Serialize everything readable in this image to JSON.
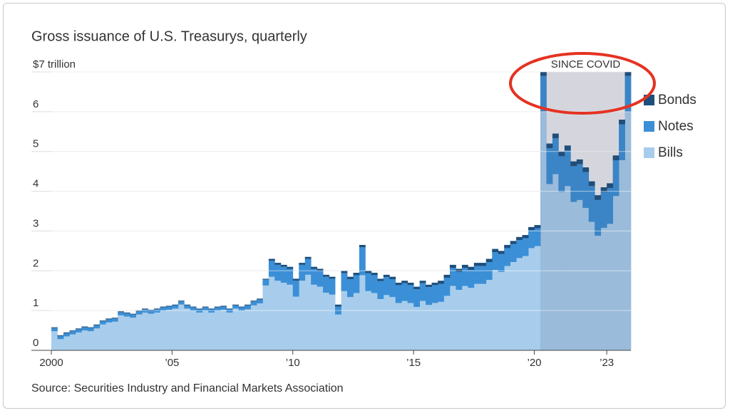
{
  "chart_data": {
    "type": "stacked-step-area",
    "title": "Gross issuance of U.S. Treasurys, quarterly",
    "source": "Source: Securities Industry and Financial Markets Association",
    "x": [
      2000,
      2000.25,
      2000.5,
      2000.75,
      2001,
      2001.25,
      2001.5,
      2001.75,
      2002,
      2002.25,
      2002.5,
      2002.75,
      2003,
      2003.25,
      2003.5,
      2003.75,
      2004,
      2004.25,
      2004.5,
      2004.75,
      2005,
      2005.25,
      2005.5,
      2005.75,
      2006,
      2006.25,
      2006.5,
      2006.75,
      2007,
      2007.25,
      2007.5,
      2007.75,
      2008,
      2008.25,
      2008.5,
      2008.75,
      2009,
      2009.25,
      2009.5,
      2009.75,
      2010,
      2010.25,
      2010.5,
      2010.75,
      2011,
      2011.25,
      2011.5,
      2011.75,
      2012,
      2012.25,
      2012.5,
      2012.75,
      2013,
      2013.25,
      2013.5,
      2013.75,
      2014,
      2014.25,
      2014.5,
      2014.75,
      2015,
      2015.25,
      2015.5,
      2015.75,
      2016,
      2016.25,
      2016.5,
      2016.75,
      2017,
      2017.25,
      2017.5,
      2017.75,
      2018,
      2018.25,
      2018.5,
      2018.75,
      2019,
      2019.25,
      2019.5,
      2019.75,
      2020,
      2020.25,
      2020.5,
      2020.75,
      2021,
      2021.25,
      2021.5,
      2021.75,
      2022,
      2022.25,
      2022.5,
      2022.75,
      2023,
      2023.25,
      2023.5,
      2023.75
    ],
    "series": [
      {
        "name": "Bills",
        "color": "#a8cdec",
        "values": [
          0.48,
          0.28,
          0.35,
          0.4,
          0.45,
          0.5,
          0.48,
          0.55,
          0.65,
          0.7,
          0.72,
          0.88,
          0.85,
          0.82,
          0.9,
          0.95,
          0.92,
          0.95,
          1.0,
          1.02,
          1.05,
          1.15,
          1.05,
          1.0,
          0.95,
          1.0,
          0.95,
          1.0,
          1.02,
          0.95,
          1.05,
          1.0,
          1.03,
          1.13,
          1.18,
          1.63,
          1.85,
          1.75,
          1.7,
          1.65,
          1.35,
          1.75,
          1.9,
          1.65,
          1.6,
          1.45,
          1.4,
          0.9,
          1.49,
          1.34,
          1.44,
          1.89,
          1.49,
          1.44,
          1.29,
          1.39,
          1.34,
          1.19,
          1.24,
          1.19,
          1.09,
          1.24,
          1.14,
          1.19,
          1.22,
          1.37,
          1.62,
          1.52,
          1.62,
          1.57,
          1.67,
          1.67,
          1.77,
          2.02,
          1.97,
          2.12,
          2.22,
          2.32,
          2.37,
          2.57,
          2.62,
          6.0,
          4.18,
          4.43,
          3.98,
          4.13,
          3.73,
          3.78,
          3.58,
          3.23,
          2.88,
          3.08,
          3.18,
          3.88,
          4.78,
          6.0
        ]
      },
      {
        "name": "Notes",
        "color": "#3b8fd6",
        "values": [
          0.08,
          0.08,
          0.08,
          0.08,
          0.08,
          0.08,
          0.08,
          0.08,
          0.08,
          0.08,
          0.08,
          0.08,
          0.08,
          0.08,
          0.08,
          0.08,
          0.08,
          0.08,
          0.08,
          0.08,
          0.08,
          0.08,
          0.08,
          0.08,
          0.08,
          0.08,
          0.08,
          0.08,
          0.08,
          0.08,
          0.08,
          0.08,
          0.1,
          0.1,
          0.1,
          0.15,
          0.4,
          0.4,
          0.4,
          0.4,
          0.4,
          0.4,
          0.4,
          0.4,
          0.4,
          0.4,
          0.4,
          0.2,
          0.45,
          0.45,
          0.45,
          0.7,
          0.45,
          0.45,
          0.45,
          0.45,
          0.45,
          0.45,
          0.45,
          0.45,
          0.45,
          0.45,
          0.45,
          0.45,
          0.45,
          0.45,
          0.45,
          0.45,
          0.45,
          0.45,
          0.45,
          0.45,
          0.45,
          0.45,
          0.45,
          0.45,
          0.45,
          0.45,
          0.45,
          0.45,
          0.45,
          0.9,
          0.9,
          0.9,
          0.9,
          0.9,
          0.9,
          0.9,
          0.9,
          0.9,
          0.9,
          0.9,
          0.9,
          0.9,
          0.9,
          0.9
        ]
      },
      {
        "name": "Bonds",
        "color": "#1d4f7c",
        "values": [
          0.02,
          0.02,
          0.02,
          0.02,
          0.02,
          0.02,
          0.02,
          0.02,
          0.02,
          0.02,
          0.02,
          0.02,
          0.02,
          0.02,
          0.02,
          0.02,
          0.02,
          0.02,
          0.02,
          0.02,
          0.02,
          0.02,
          0.02,
          0.02,
          0.02,
          0.02,
          0.02,
          0.02,
          0.02,
          0.02,
          0.02,
          0.02,
          0.02,
          0.02,
          0.02,
          0.02,
          0.05,
          0.05,
          0.05,
          0.05,
          0.05,
          0.05,
          0.05,
          0.05,
          0.05,
          0.05,
          0.05,
          0.05,
          0.06,
          0.06,
          0.06,
          0.06,
          0.06,
          0.06,
          0.06,
          0.06,
          0.06,
          0.06,
          0.06,
          0.06,
          0.06,
          0.06,
          0.06,
          0.06,
          0.08,
          0.08,
          0.08,
          0.08,
          0.08,
          0.08,
          0.08,
          0.08,
          0.08,
          0.08,
          0.08,
          0.08,
          0.08,
          0.08,
          0.08,
          0.08,
          0.08,
          0.1,
          0.12,
          0.12,
          0.12,
          0.12,
          0.12,
          0.12,
          0.12,
          0.12,
          0.12,
          0.12,
          0.12,
          0.12,
          0.12,
          0.1
        ]
      }
    ],
    "xlim": [
      2000,
      2024
    ],
    "xticks": [
      {
        "value": 2000,
        "label": "2000"
      },
      {
        "value": 2005,
        "label": "’05"
      },
      {
        "value": 2010,
        "label": "’10"
      },
      {
        "value": 2015,
        "label": "’15"
      },
      {
        "value": 2020,
        "label": "’20"
      },
      {
        "value": 2023,
        "label": "’23"
      }
    ],
    "ylim": [
      0,
      7
    ],
    "yticks": [
      0,
      1,
      2,
      3,
      4,
      5,
      6,
      {
        "value": 7,
        "label": "$7 trillion"
      }
    ],
    "grid": true,
    "shade": {
      "from": 2020.25,
      "to": 2024,
      "label": "SINCE COVID"
    },
    "legend": "right"
  }
}
